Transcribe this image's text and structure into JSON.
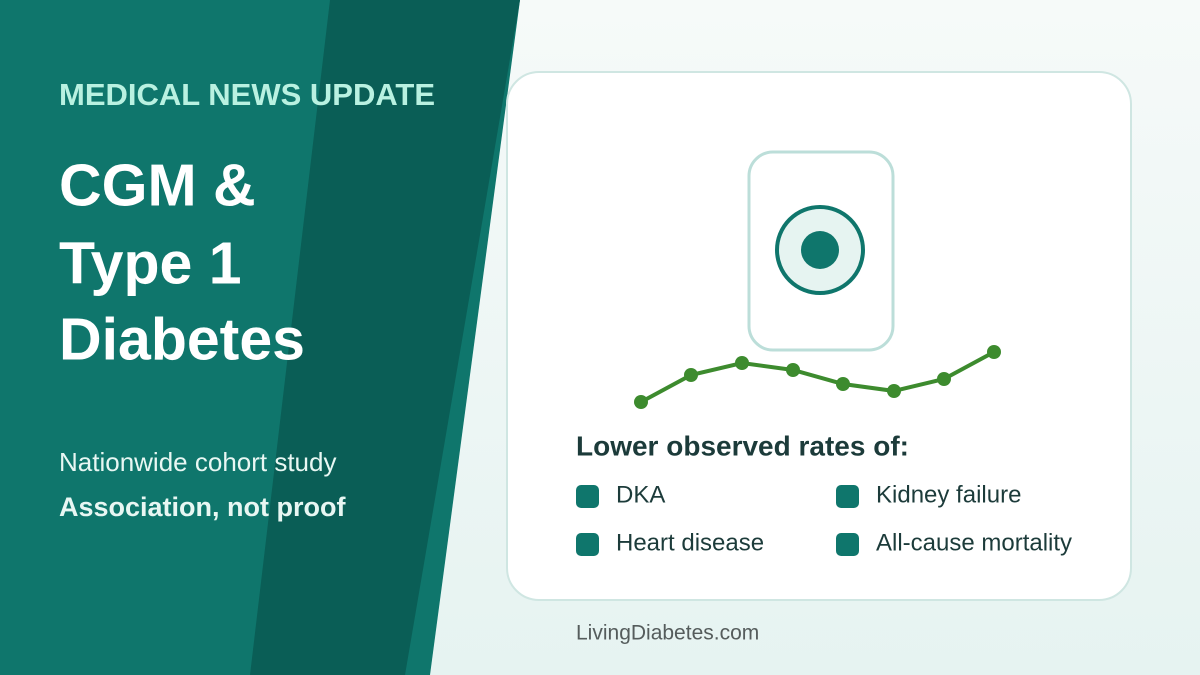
{
  "header": {
    "kicker": "MEDICAL NEWS UPDATE",
    "title_lines": [
      "CGM &",
      "Type 1",
      "Diabetes"
    ],
    "subtitle": "Nationwide cohort study",
    "note": "Association, not proof"
  },
  "card": {
    "heading": "Lower observed rates of:",
    "items": [
      "DKA",
      "Kidney failure",
      "Heart disease",
      "All-cause mortality"
    ]
  },
  "footer": {
    "site": "LivingDiabetes.com"
  }
}
